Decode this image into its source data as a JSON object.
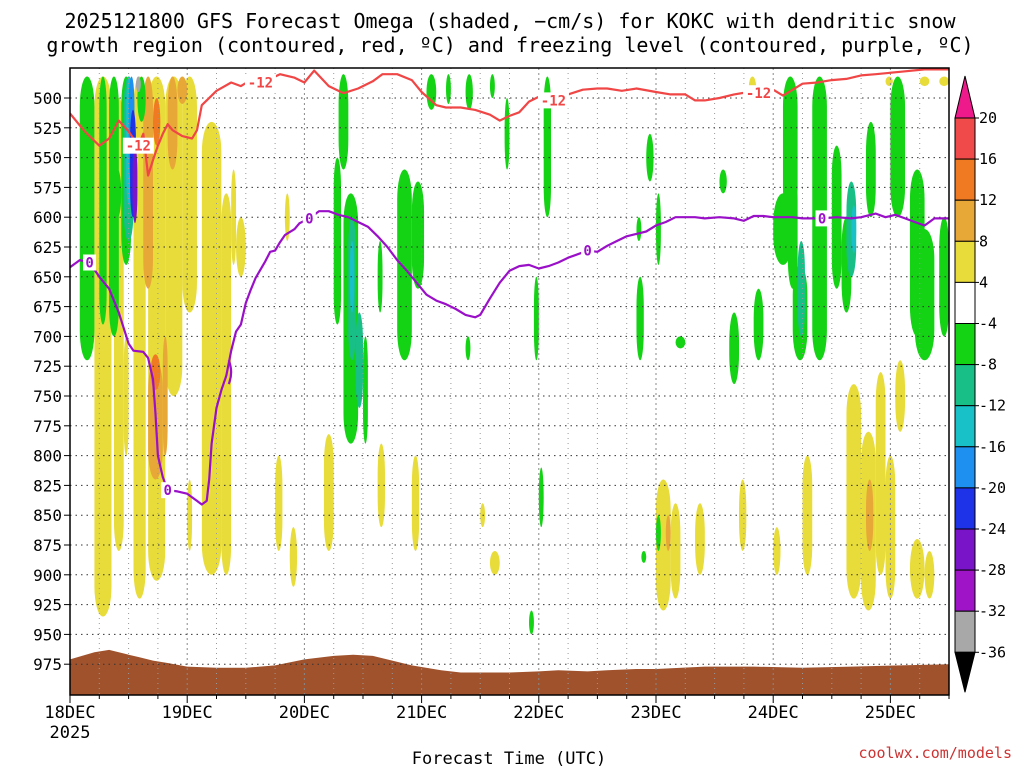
{
  "chart_data": {
    "type": "heatmap",
    "title_lines": [
      "2025121800 GFS Forecast Omega (shaded, −cm/s) for KOKC with dendritic snow",
      "growth region (contoured, red, ºC) and freezing level (contoured, purple, ºC)"
    ],
    "xlabel": "Forecast Time (UTC)",
    "x_tick_labels": [
      "18DEC",
      "19DEC",
      "20DEC",
      "21DEC",
      "22DEC",
      "23DEC",
      "24DEC",
      "25DEC"
    ],
    "x_sublabel": "2025",
    "x_range_hours": [
      0,
      180
    ],
    "y_tick_labels": [
      500,
      525,
      550,
      575,
      600,
      625,
      650,
      675,
      700,
      725,
      750,
      775,
      800,
      825,
      850,
      875,
      900,
      925,
      950,
      975
    ],
    "ylim_hpa": [
      980,
      482
    ],
    "grid": "dotted",
    "colorbar": {
      "labels": [
        20,
        16,
        12,
        8,
        4,
        -4,
        -8,
        -12,
        -16,
        -20,
        -24,
        -28,
        -32,
        -36
      ],
      "colors": [
        "#ee1a8c",
        "#f04a4a",
        "#f07a22",
        "#e8a838",
        "#e8dc3a",
        "#ffffff",
        "#14d214",
        "#18c088",
        "#18c0c8",
        "#1e90f0",
        "#1e32e8",
        "#7a14c8",
        "#a014c8",
        "#a8a8a8",
        "#000000"
      ]
    },
    "series": [
      {
        "name": "-12",
        "color": "#f04646",
        "label_positions_hours": [
          14,
          39,
          99,
          141
        ],
        "points": [
          [
            0,
            513
          ],
          [
            3,
            528
          ],
          [
            6,
            540
          ],
          [
            8,
            534
          ],
          [
            10,
            519
          ],
          [
            12,
            528
          ],
          [
            14,
            540
          ],
          [
            15,
            530
          ],
          [
            16,
            565
          ],
          [
            17,
            552
          ],
          [
            18,
            540
          ],
          [
            19,
            530
          ],
          [
            20,
            522
          ],
          [
            21,
            527
          ],
          [
            23,
            532
          ],
          [
            25,
            534
          ],
          [
            26,
            527
          ],
          [
            27,
            506
          ],
          [
            30,
            494
          ],
          [
            33,
            487
          ],
          [
            35,
            490
          ],
          [
            37,
            485
          ],
          [
            39,
            487
          ],
          [
            41,
            484
          ],
          [
            43,
            480
          ],
          [
            46,
            483
          ],
          [
            48,
            487
          ],
          [
            50,
            477
          ],
          [
            53,
            490
          ],
          [
            56,
            496
          ],
          [
            59,
            492
          ],
          [
            62,
            486
          ],
          [
            64,
            480
          ],
          [
            67,
            480
          ],
          [
            70,
            485
          ],
          [
            72,
            495
          ],
          [
            75,
            506
          ],
          [
            77,
            508
          ],
          [
            80,
            508
          ],
          [
            83,
            510
          ],
          [
            86,
            514
          ],
          [
            88,
            519
          ],
          [
            90,
            515
          ],
          [
            92,
            512
          ],
          [
            94,
            503
          ],
          [
            96,
            499
          ],
          [
            99,
            502
          ],
          [
            102,
            497
          ],
          [
            105,
            493
          ],
          [
            108,
            492
          ],
          [
            110,
            492
          ],
          [
            113,
            494
          ],
          [
            116,
            492
          ],
          [
            120,
            495
          ],
          [
            123,
            497
          ],
          [
            126,
            497
          ],
          [
            128,
            502
          ],
          [
            130,
            502
          ],
          [
            133,
            500
          ],
          [
            136,
            497
          ],
          [
            139,
            495
          ],
          [
            141,
            496
          ],
          [
            144,
            493
          ],
          [
            146,
            498
          ],
          [
            148,
            493
          ],
          [
            150,
            488
          ],
          [
            153,
            487
          ],
          [
            156,
            485
          ],
          [
            159,
            484
          ],
          [
            162,
            481
          ],
          [
            165,
            480
          ],
          [
            170,
            478
          ],
          [
            175,
            476
          ],
          [
            180,
            476
          ]
        ]
      },
      {
        "name": "0",
        "color": "#9a10c8",
        "label_positions_hours": [
          5,
          21,
          49,
          106,
          154
        ],
        "points": [
          [
            0,
            642
          ],
          [
            2,
            636
          ],
          [
            4,
            638
          ],
          [
            6,
            650
          ],
          [
            8,
            660
          ],
          [
            10,
            680
          ],
          [
            12,
            706
          ],
          [
            13,
            712
          ],
          [
            15,
            713
          ],
          [
            16,
            718
          ],
          [
            17,
            736
          ],
          [
            17.5,
            765
          ],
          [
            18,
            800
          ],
          [
            19,
            818
          ],
          [
            20,
            829
          ],
          [
            22,
            830
          ],
          [
            24,
            832
          ],
          [
            26,
            838
          ],
          [
            27,
            841
          ],
          [
            28,
            838
          ],
          [
            28.5,
            820
          ],
          [
            29,
            790
          ],
          [
            30,
            760
          ],
          [
            31,
            745
          ],
          [
            32,
            733
          ],
          [
            33,
            712
          ],
          [
            34,
            696
          ],
          [
            35,
            690
          ],
          [
            36,
            672
          ],
          [
            37,
            661
          ],
          [
            38,
            651
          ],
          [
            39,
            644
          ],
          [
            40,
            637
          ],
          [
            41,
            629
          ],
          [
            42,
            628
          ],
          [
            43,
            621
          ],
          [
            44,
            615
          ],
          [
            46,
            610
          ],
          [
            47,
            605
          ],
          [
            49,
            601
          ],
          [
            51,
            595
          ],
          [
            53,
            595
          ],
          [
            55,
            598
          ],
          [
            57,
            600
          ],
          [
            59,
            604
          ],
          [
            61,
            608
          ],
          [
            63,
            616
          ],
          [
            65,
            625
          ],
          [
            67,
            636
          ],
          [
            69,
            645
          ],
          [
            71,
            655
          ],
          [
            73,
            665
          ],
          [
            75,
            670
          ],
          [
            77,
            673
          ],
          [
            79,
            677
          ],
          [
            81,
            682
          ],
          [
            83,
            684
          ],
          [
            84,
            682
          ],
          [
            86,
            668
          ],
          [
            88,
            655
          ],
          [
            90,
            645
          ],
          [
            92,
            641
          ],
          [
            94,
            640
          ],
          [
            96,
            643
          ],
          [
            98,
            641
          ],
          [
            100,
            638
          ],
          [
            102,
            634
          ],
          [
            104,
            631
          ],
          [
            106,
            628
          ],
          [
            108,
            629
          ],
          [
            110,
            624
          ],
          [
            112,
            620
          ],
          [
            114,
            616
          ],
          [
            116,
            614
          ],
          [
            118,
            612
          ],
          [
            120,
            607
          ],
          [
            122,
            604
          ],
          [
            124,
            600
          ],
          [
            126,
            600
          ],
          [
            128,
            600
          ],
          [
            130,
            601
          ],
          [
            133,
            600
          ],
          [
            136,
            601
          ],
          [
            138,
            603
          ],
          [
            140,
            599
          ],
          [
            142,
            599
          ],
          [
            144,
            600
          ],
          [
            146,
            600
          ],
          [
            148,
            600
          ],
          [
            150,
            601
          ],
          [
            152,
            601
          ],
          [
            154,
            601
          ],
          [
            157,
            600
          ],
          [
            160,
            601
          ],
          [
            162,
            600
          ],
          [
            165,
            597
          ],
          [
            167,
            600
          ],
          [
            169,
            598
          ],
          [
            171,
            601
          ],
          [
            173,
            604
          ],
          [
            175,
            607
          ],
          [
            177,
            601
          ],
          [
            180,
            601
          ]
        ]
      }
    ],
    "annotations": [
      "coolwx.com/models"
    ]
  }
}
